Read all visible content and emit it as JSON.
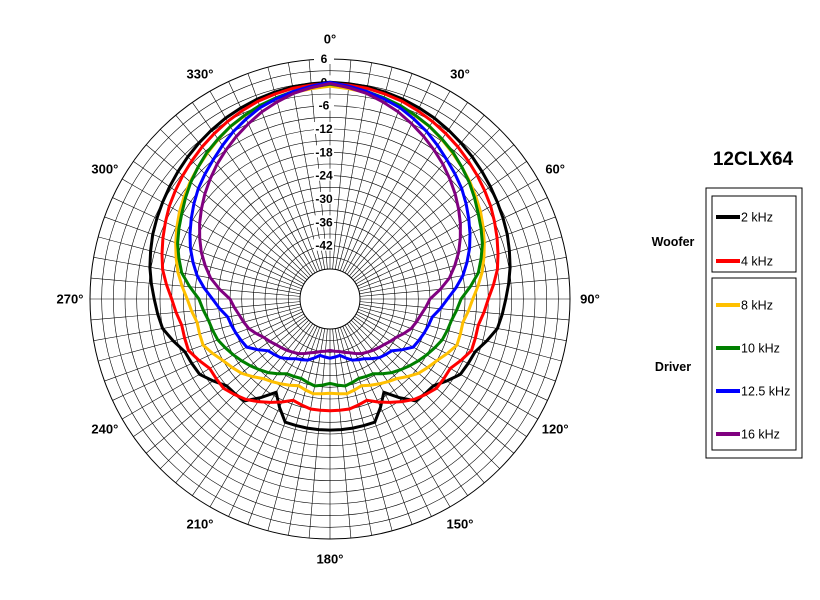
{
  "chart_data": {
    "type": "polar-line",
    "title": "12CLX64",
    "angle_unit": "deg",
    "angle_ticks": [
      "0°",
      "30°",
      "60°",
      "90°",
      "120°",
      "150°",
      "180°",
      "210°",
      "240°",
      "270°",
      "300°",
      "330°"
    ],
    "radial_ticks": [
      "6",
      "0",
      "-6",
      "-12",
      "-18",
      "-24",
      "-30",
      "-36",
      "-42"
    ],
    "rlim": [
      -48,
      6
    ],
    "angle_step_deg": 5,
    "grid": true,
    "legend_position": "right",
    "groups": [
      {
        "name": "Woofer",
        "series_names": [
          "2 kHz",
          "4 kHz"
        ]
      },
      {
        "name": "Driver",
        "series_names": [
          "8 kHz",
          "10 kHz",
          "12.5 kHz",
          "16 kHz"
        ]
      }
    ],
    "series": [
      {
        "name": "2 kHz",
        "color": "#000000",
        "x_deg": [
          0,
          10,
          20,
          30,
          40,
          50,
          60,
          70,
          80,
          90,
          100,
          110,
          120,
          130,
          140,
          150,
          160,
          170,
          180,
          190,
          200,
          210,
          220,
          230,
          240,
          250,
          260,
          270,
          280,
          290,
          300,
          310,
          320,
          330,
          340,
          350
        ],
        "values": [
          0,
          -0.3,
          -1,
          -2,
          -3.3,
          -4.7,
          -6,
          -7.2,
          -8.7,
          -10.5,
          -12,
          -16,
          -17,
          -21,
          -21.5,
          -28,
          -22,
          -22,
          -22,
          -22,
          -22,
          -28,
          -21.5,
          -21,
          -17,
          -16,
          -12,
          -10.5,
          -8.7,
          -7.2,
          -6,
          -4.7,
          -3.3,
          -2,
          -1,
          -0.3
        ]
      },
      {
        "name": "4 kHz",
        "color": "#ff0000",
        "x_deg": [
          0,
          10,
          20,
          30,
          40,
          50,
          60,
          70,
          80,
          90,
          100,
          110,
          120,
          130,
          140,
          150,
          160,
          170,
          180,
          190,
          200,
          210,
          220,
          230,
          240,
          250,
          260,
          270,
          280,
          290,
          300,
          310,
          320,
          330,
          340,
          350
        ],
        "values": [
          -0.3,
          -0.7,
          -1.6,
          -3,
          -4.6,
          -6.3,
          -8,
          -10,
          -12,
          -15,
          -17,
          -17,
          -20,
          -20,
          -22,
          -25,
          -28,
          -27,
          -27,
          -27,
          -28,
          -25,
          -22,
          -20,
          -20,
          -17,
          -17,
          -15,
          -12,
          -10,
          -8,
          -6.3,
          -4.6,
          -3,
          -1.6,
          -0.7
        ]
      },
      {
        "name": "8 kHz",
        "color": "#ffc000",
        "x_deg": [
          0,
          10,
          20,
          30,
          40,
          50,
          60,
          70,
          80,
          90,
          100,
          110,
          120,
          130,
          140,
          150,
          160,
          170,
          180,
          190,
          200,
          210,
          220,
          230,
          240,
          250,
          260,
          270,
          280,
          290,
          300,
          310,
          320,
          330,
          340,
          350
        ],
        "values": [
          -1,
          -1.8,
          -3,
          -4.5,
          -6.7,
          -8.8,
          -11,
          -13.5,
          -16,
          -19,
          -21,
          -21,
          -24,
          -26,
          -29,
          -30.5,
          -32,
          -31,
          -31.5,
          -31,
          -32,
          -30.5,
          -29,
          -26,
          -24,
          -21,
          -21,
          -19,
          -16,
          -13.5,
          -11,
          -8.8,
          -6.7,
          -4.5,
          -3,
          -1.8
        ]
      },
      {
        "name": "10 kHz",
        "color": "#008000",
        "x_deg": [
          0,
          10,
          20,
          30,
          40,
          50,
          60,
          70,
          80,
          90,
          100,
          110,
          120,
          130,
          140,
          150,
          160,
          170,
          180,
          190,
          200,
          210,
          220,
          230,
          240,
          250,
          260,
          270,
          280,
          290,
          300,
          310,
          320,
          330,
          340,
          350
        ],
        "values": [
          -0.5,
          -1.5,
          -2.8,
          -4.5,
          -6.5,
          -9,
          -11.7,
          -14,
          -17,
          -22,
          -24,
          -25,
          -27,
          -29,
          -31,
          -33.5,
          -34,
          -33,
          -34,
          -33,
          -34,
          -33.5,
          -31,
          -29,
          -27,
          -25,
          -24,
          -22,
          -17,
          -14,
          -11.7,
          -9,
          -6.5,
          -4.5,
          -2.8,
          -1.5
        ]
      },
      {
        "name": "12.5 kHz",
        "color": "#0000ff",
        "x_deg": [
          0,
          10,
          20,
          30,
          40,
          50,
          60,
          70,
          80,
          90,
          100,
          110,
          120,
          130,
          140,
          150,
          160,
          170,
          180,
          190,
          200,
          210,
          220,
          230,
          240,
          250,
          260,
          270,
          280,
          290,
          300,
          310,
          320,
          330,
          340,
          350
        ],
        "values": [
          0,
          -1.5,
          -3.3,
          -6,
          -9,
          -11.5,
          -14.5,
          -17.5,
          -21,
          -25.5,
          -29,
          -30,
          -31,
          -35,
          -36,
          -38,
          -39,
          -41,
          -40.5,
          -41,
          -39,
          -38,
          -36,
          -35,
          -31,
          -30,
          -29,
          -25.5,
          -21,
          -17.5,
          -14.5,
          -11.5,
          -9,
          -6,
          -3.3,
          -1.5
        ]
      },
      {
        "name": "16 kHz",
        "color": "#800080",
        "x_deg": [
          0,
          10,
          20,
          30,
          40,
          50,
          60,
          70,
          80,
          90,
          100,
          110,
          120,
          130,
          140,
          150,
          160,
          170,
          180,
          190,
          200,
          210,
          220,
          230,
          240,
          250,
          260,
          270,
          280,
          290,
          300,
          310,
          320,
          330,
          340,
          350
        ],
        "values": [
          -0.3,
          -2,
          -4.5,
          -7.5,
          -10.5,
          -13.7,
          -17,
          -20.5,
          -24.5,
          -30,
          -32,
          -33.5,
          -36,
          -37.5,
          -38.5,
          -39.5,
          -41,
          -42,
          -42.5,
          -42,
          -41,
          -39.5,
          -38.5,
          -37.5,
          -36,
          -33.5,
          -32,
          -30,
          -24.5,
          -20.5,
          -17,
          -13.7,
          -10.5,
          -7.5,
          -4.5,
          -2
        ]
      }
    ]
  }
}
